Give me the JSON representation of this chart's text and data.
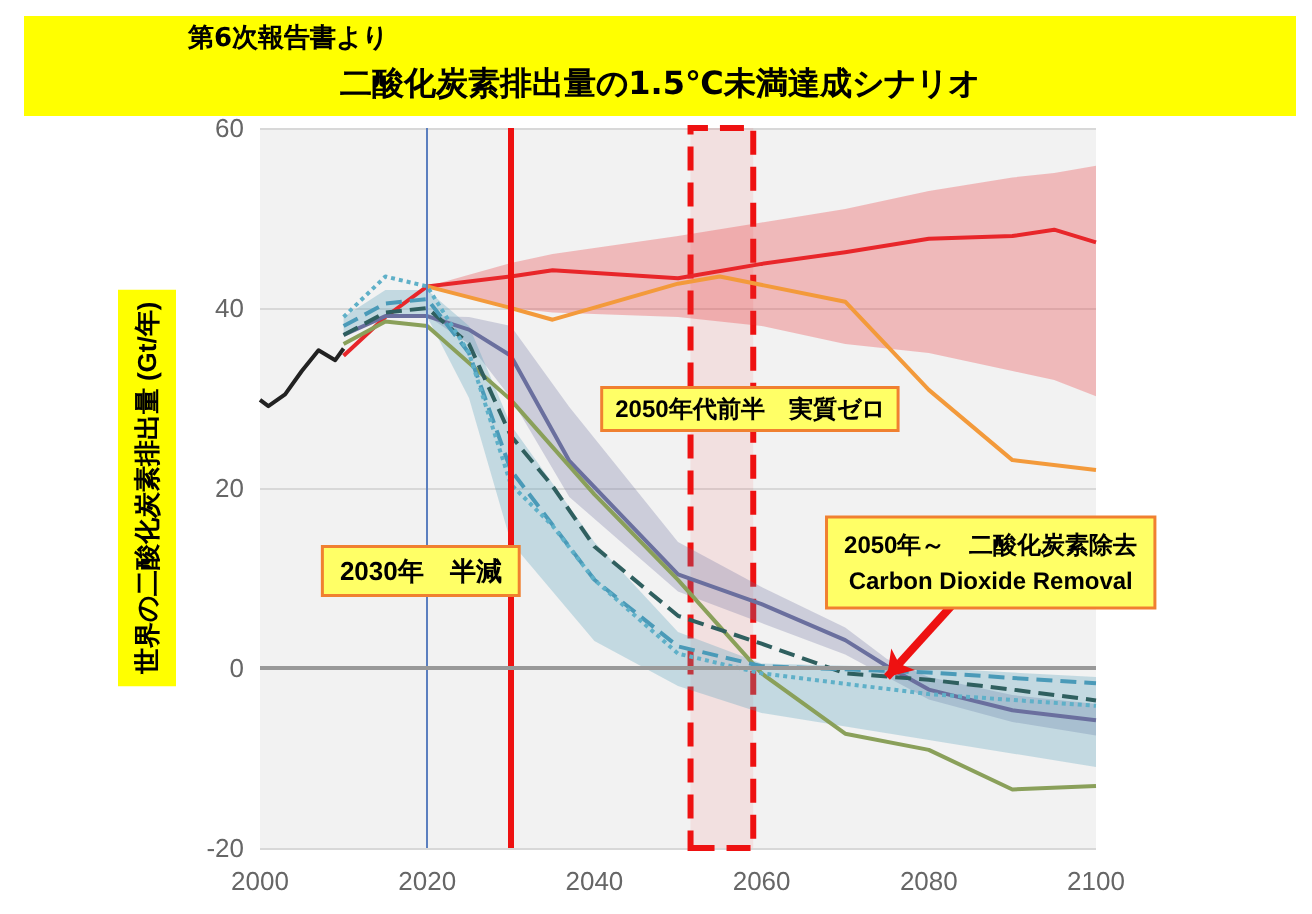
{
  "chart_data": {
    "type": "line",
    "title": "二酸化炭素排出量の1.5℃未満達成シナリオ",
    "subtitle": "第6次報告書より",
    "ylabel": "世界の二酸化炭素排出量 (Gt/年)",
    "xlim": [
      2000,
      2100
    ],
    "xticks": [
      2000,
      2020,
      2040,
      2060,
      2080,
      2100
    ],
    "ylim": [
      -20,
      60
    ],
    "yticks": [
      -20,
      0,
      20,
      40,
      60
    ],
    "grid": "y",
    "marker": "none",
    "series": [
      {
        "color": "#222222",
        "x": [
          2000,
          2001,
          2003,
          2005,
          2007,
          2009,
          2010
        ],
        "values": [
          29.8,
          29.1,
          30.4,
          33,
          35.3,
          34.2,
          35.5
        ]
      },
      {
        "color": "#e8262a",
        "x": [
          2010,
          2015,
          2020,
          2030,
          2035,
          2050,
          2060,
          2070,
          2080,
          2090,
          2095,
          2100
        ],
        "values": [
          34.7,
          39,
          42.4,
          43.5,
          44.2,
          43.3,
          44.9,
          46.2,
          47.7,
          48,
          48.7,
          47.3
        ],
        "lower": [
          34.7,
          39,
          42.4,
          40,
          39.5,
          39,
          38,
          36,
          35,
          33,
          32,
          30.2
        ],
        "upper": [
          34.7,
          39,
          42.4,
          45,
          46,
          48,
          49.5,
          51,
          53,
          54.5,
          55,
          55.8
        ]
      },
      {
        "color": "#f39a3b",
        "x": [
          2020,
          2030,
          2035,
          2050,
          2055,
          2070,
          2080,
          2090,
          2100
        ],
        "values": [
          42.4,
          40,
          38.7,
          42.7,
          43.5,
          40.7,
          30.9,
          23.1,
          22
        ]
      },
      {
        "color": "#6a6f9e",
        "x": [
          2010,
          2015,
          2020,
          2025,
          2030,
          2037,
          2050,
          2060,
          2070,
          2075,
          2080,
          2090,
          2100
        ],
        "values": [
          37,
          39.1,
          39.1,
          37.6,
          34.7,
          23,
          10.4,
          7.1,
          3.1,
          0.2,
          -2.4,
          -4.7,
          -5.8
        ],
        "lower": [
          37,
          39.1,
          39.1,
          36,
          30,
          19,
          8.5,
          5,
          1.5,
          -1,
          -3.5,
          -6,
          -7.5
        ],
        "upper": [
          37,
          39.1,
          39.1,
          39,
          38,
          29,
          14,
          9,
          4.5,
          1,
          -1,
          -3,
          -4
        ]
      },
      {
        "color": "#8aa05a",
        "x": [
          2010,
          2015,
          2020,
          2030,
          2040,
          2050,
          2060,
          2070,
          2080,
          2090,
          2100
        ],
        "values": [
          36,
          38.5,
          38,
          29.8,
          19.3,
          9.8,
          -0.6,
          -7.3,
          -9.1,
          -13.5,
          -13.1
        ]
      },
      {
        "color": "#2f5f5f",
        "line_style": "dashed",
        "x": [
          2010,
          2015,
          2020,
          2025,
          2030,
          2035,
          2040,
          2050,
          2060,
          2070,
          2080,
          2090,
          2100
        ],
        "values": [
          37,
          39.5,
          40,
          36,
          25.8,
          20.2,
          13.5,
          5.8,
          2.7,
          -0.6,
          -1.3,
          -2.4,
          -3.6
        ]
      },
      {
        "color": "#4a9ab8",
        "line_style": "dashed",
        "x": [
          2010,
          2015,
          2020,
          2025,
          2030,
          2040,
          2050,
          2060,
          2080,
          2100
        ],
        "values": [
          38,
          40.5,
          41,
          35,
          22,
          9.8,
          2.4,
          0.2,
          -0.5,
          -1.7
        ],
        "lower": [
          37,
          39,
          39,
          30,
          14,
          3,
          -2,
          -5,
          -8,
          -11
        ],
        "upper": [
          39,
          42,
          42,
          38,
          27,
          14,
          4,
          0.5,
          0,
          -1
        ]
      },
      {
        "color": "#5fb0c8",
        "line_style": "dotted",
        "x": [
          2010,
          2015,
          2020,
          2025,
          2030,
          2035,
          2040,
          2050,
          2060,
          2080,
          2100
        ],
        "values": [
          39,
          43.5,
          42.4,
          35,
          20.4,
          15.8,
          9.8,
          1.6,
          -0.6,
          -2.9,
          -4.2
        ]
      }
    ],
    "ref_lines": [
      {
        "axis": "x",
        "value": 2020,
        "color": "#5b7fbf"
      },
      {
        "axis": "x",
        "value": 2030,
        "color": "#ee1111",
        "label": "2030年　半減"
      },
      {
        "axis": "y",
        "value": 0,
        "color": "#999999"
      }
    ],
    "bands": [
      {
        "axis": "x",
        "from": 2051.5,
        "to": 2059,
        "color": "#ee1111",
        "label": "2050年代前半　実質ゼロ"
      }
    ],
    "annotations": [
      {
        "text": "2050年～　二酸化炭素除去\nCarbon Dioxide Removal",
        "x": 2075,
        "y": -1
      }
    ]
  }
}
